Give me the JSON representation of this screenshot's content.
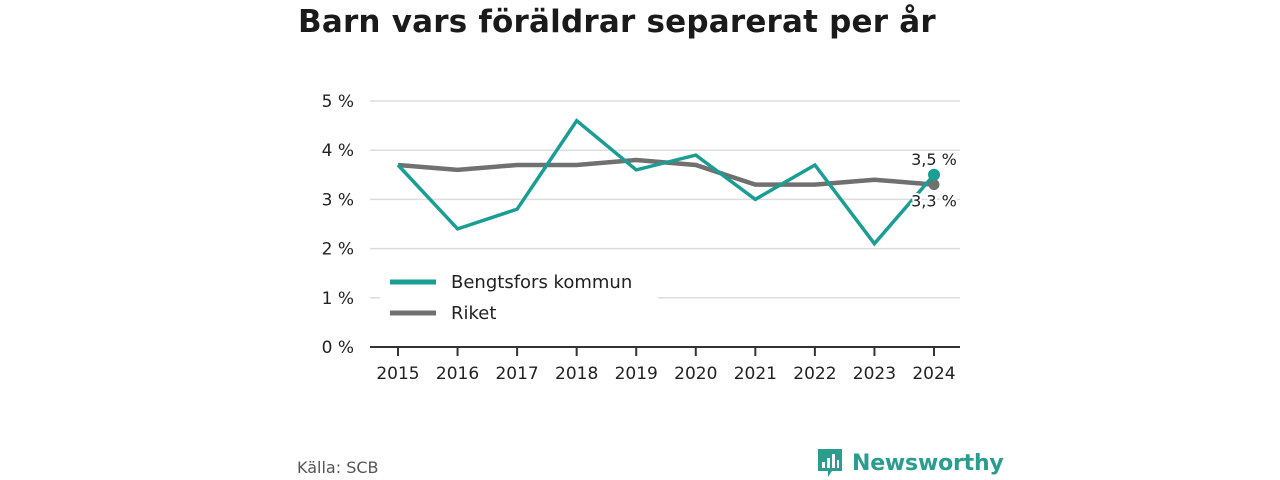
{
  "title": "Barn vars föräldrar separerat per år",
  "source": "Källa: SCB",
  "brand": "Newsworthy",
  "colors": {
    "teal": "#1a9e93",
    "gray": "#707070",
    "grid": "#dddddd",
    "axis": "#333333",
    "brand": "#2a9d8f"
  },
  "chart_data": {
    "type": "line",
    "title": "Barn vars föräldrar separerat per år",
    "x": [
      "2015",
      "2016",
      "2017",
      "2018",
      "2019",
      "2020",
      "2021",
      "2022",
      "2023",
      "2024"
    ],
    "yticks": [
      "0 %",
      "1 %",
      "2 %",
      "3 %",
      "4 %",
      "5 %"
    ],
    "ylim": [
      0,
      5
    ],
    "grid": true,
    "legend_position": "bottom-left",
    "series": [
      {
        "name": "Bengtsfors kommun",
        "color": "#1a9e93",
        "values": [
          3.7,
          2.4,
          2.8,
          4.6,
          3.6,
          3.9,
          3.0,
          3.7,
          2.1,
          3.5
        ],
        "end_label": "3,5 %"
      },
      {
        "name": "Riket",
        "color": "#707070",
        "values": [
          3.7,
          3.6,
          3.7,
          3.7,
          3.8,
          3.7,
          3.3,
          3.3,
          3.4,
          3.3
        ],
        "end_label": "3,3 %"
      }
    ]
  }
}
